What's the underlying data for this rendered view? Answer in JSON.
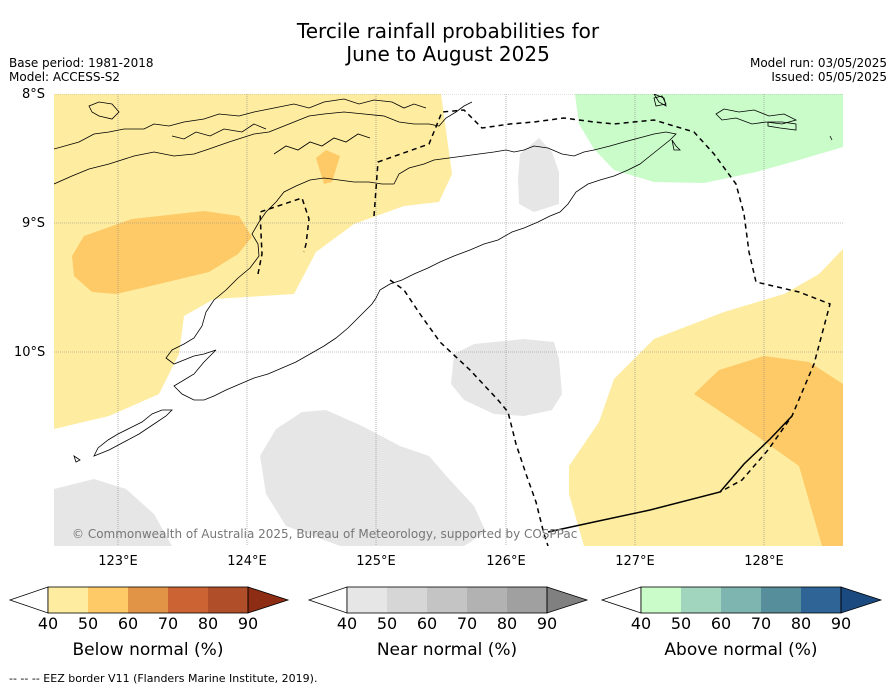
{
  "header": {
    "title_line1": "Tercile rainfall probabilities for",
    "title_line2": "June to August 2025",
    "base_period": "Base period: 1981-2018",
    "model": "Model: ACCESS-S2",
    "model_run": "Model run: 03/05/2025",
    "issued": "Issued: 05/05/2025"
  },
  "map": {
    "lat_labels": [
      "8°S",
      "9°S",
      "10°S"
    ],
    "lon_labels": [
      "123°E",
      "124°E",
      "125°E",
      "126°E",
      "127°E",
      "128°E"
    ],
    "copyright": "© Commonwealth of Australia 2025, Bureau of Meteorology, supported by COSPPac"
  },
  "colorbars": [
    {
      "title": "Below normal (%)",
      "ticks": [
        "40",
        "50",
        "60",
        "70",
        "80",
        "90"
      ],
      "colors": [
        "#ffffff",
        "#feeca0",
        "#fdca67",
        "#e19346",
        "#cb6332",
        "#b04e29",
        "#8c2d14"
      ]
    },
    {
      "title": "Near normal (%)",
      "ticks": [
        "40",
        "50",
        "60",
        "70",
        "80",
        "90"
      ],
      "colors": [
        "#ffffff",
        "#e6e6e6",
        "#d6d6d6",
        "#c4c4c4",
        "#b2b2b2",
        "#a0a0a0",
        "#808080"
      ]
    },
    {
      "title": "Above normal (%)",
      "ticks": [
        "40",
        "50",
        "60",
        "70",
        "80",
        "90"
      ],
      "colors": [
        "#ffffff",
        "#c9fcc9",
        "#a2d5bd",
        "#7fb5b0",
        "#578e9c",
        "#2f6497",
        "#1a4a80"
      ]
    }
  ],
  "footer": "--  --  -- EEZ border V11 (Flanders Marine Institute, 2019)."
}
